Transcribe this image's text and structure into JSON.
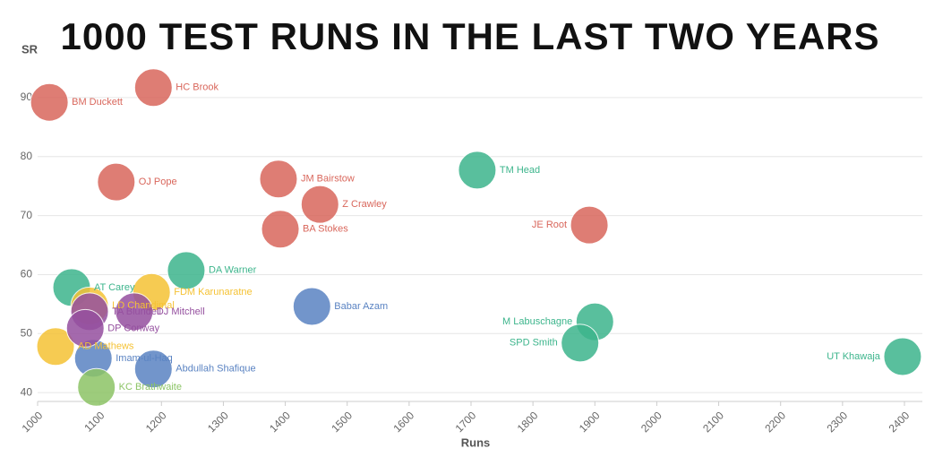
{
  "chart_data": {
    "type": "scatter",
    "title": "1000 TEST RUNS IN THE LAST TWO YEARS",
    "x_label": "Runs",
    "y_label": "SR",
    "xlim": [
      1000,
      2400
    ],
    "xticks": [
      1000,
      1100,
      1200,
      1300,
      1400,
      1500,
      1600,
      1700,
      1800,
      1900,
      2000,
      2100,
      2200,
      2300,
      2400
    ],
    "ylim": [
      38.5,
      95
    ],
    "yticks": [
      40,
      50,
      60,
      70,
      80,
      90
    ],
    "grid": true,
    "series": [
      {
        "color": "#d9675c",
        "labels": [
          "BM Duckett",
          "HC Brook",
          "OJ Pope",
          "JM Bairstow",
          "Z Crawley",
          "BA Stokes",
          "JE Root"
        ],
        "x": [
          1019,
          1187,
          1127,
          1389,
          1456,
          1392,
          1891
        ],
        "values": [
          89.2,
          91.7,
          75.7,
          76.2,
          71.9,
          67.7,
          68.4
        ]
      },
      {
        "color": "#3db58c",
        "labels": [
          "TM Head",
          "DA Warner",
          "AT Carey",
          "M Labuschagne",
          "SPD Smith",
          "UT Khawaja"
        ],
        "x": [
          1710,
          1240,
          1055,
          1900,
          1876,
          2397
        ],
        "values": [
          77.7,
          60.7,
          57.8,
          52.0,
          48.4,
          46.1
        ]
      },
      {
        "color": "#5a83c2",
        "labels": [
          "Babar Azam",
          "Imam-ul-Haq",
          "Abdullah Shafique"
        ],
        "x": [
          1443,
          1090,
          1187
        ],
        "values": [
          54.6,
          45.8,
          44.0
        ]
      },
      {
        "color": "#f5c235",
        "labels": [
          "FDM Karunaratne",
          "AD Mathews",
          "LD Chandimal"
        ],
        "x": [
          1184,
          1029,
          1084
        ],
        "values": [
          57.0,
          47.8,
          54.7
        ]
      },
      {
        "color": "#95509f",
        "labels": [
          "DJ Mitchell",
          "TA Blundell",
          "DP Conway"
        ],
        "x": [
          1156,
          1084,
          1077
        ],
        "values": [
          53.7,
          53.7,
          50.9
        ]
      },
      {
        "color": "#8cc466",
        "labels": [
          "KC Brathwaite"
        ],
        "x": [
          1095
        ],
        "values": [
          40.9
        ]
      }
    ]
  }
}
